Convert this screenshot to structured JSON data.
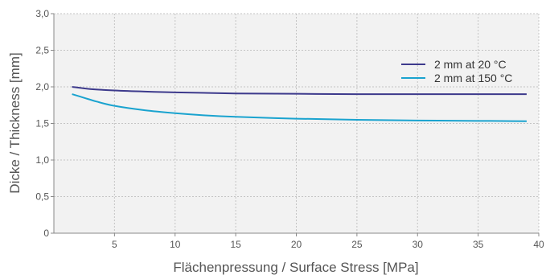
{
  "chart_data": {
    "type": "line",
    "xlabel": "Flächenpressung / Surface Stress   [MPa]",
    "ylabel": "Dicke / Thickness   [mm]",
    "xlim": [
      0,
      40
    ],
    "ylim": [
      0,
      3.0
    ],
    "xticks": [
      5,
      10,
      15,
      20,
      25,
      30,
      35,
      40
    ],
    "yticks": [
      0,
      0.5,
      1.0,
      1.5,
      2.0,
      2.5,
      3.0
    ],
    "xtick_labels": [
      "5",
      "10",
      "15",
      "20",
      "25",
      "30",
      "35",
      "40"
    ],
    "ytick_labels": [
      "0",
      "0,5",
      "1,0",
      "1,5",
      "2,0",
      "2,5",
      "3,0"
    ],
    "grid": true,
    "legend_position": "top-right",
    "series": [
      {
        "name": "2 mm at 20 °C",
        "color": "#3d3a8c",
        "x": [
          1.5,
          3,
          5,
          7.5,
          10,
          15,
          20,
          25,
          30,
          35,
          39
        ],
        "y": [
          2.0,
          1.97,
          1.95,
          1.935,
          1.925,
          1.91,
          1.905,
          1.9,
          1.9,
          1.9,
          1.9
        ]
      },
      {
        "name": "2 mm at 150 °C",
        "color": "#1aa3cf",
        "x": [
          1.5,
          2.5,
          3.5,
          5,
          7.5,
          10,
          12.5,
          15,
          20,
          25,
          30,
          35,
          39
        ],
        "y": [
          1.9,
          1.85,
          1.8,
          1.74,
          1.68,
          1.64,
          1.61,
          1.59,
          1.565,
          1.55,
          1.54,
          1.535,
          1.53
        ]
      }
    ]
  }
}
